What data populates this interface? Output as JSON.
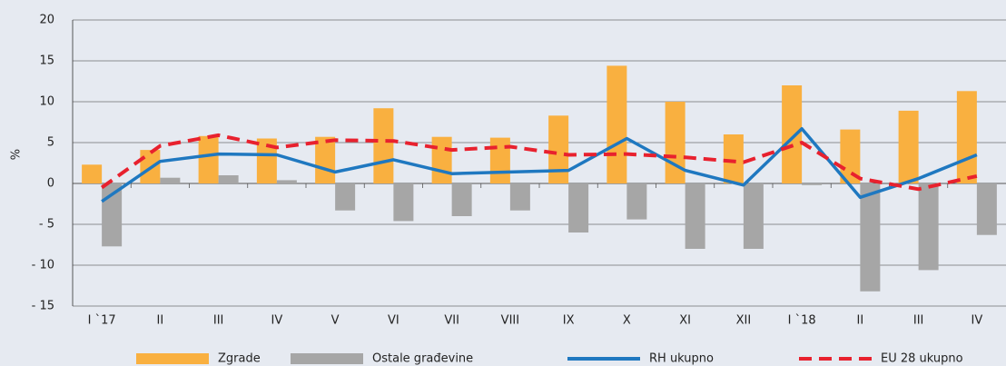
{
  "chart_data": {
    "type": "bar_line",
    "y_label": "%",
    "categories": [
      "I `17",
      "II",
      "III",
      "IV",
      "V",
      "VI",
      "VII",
      "VIII",
      "IX",
      "X",
      "XI",
      "XII",
      "I `18",
      "II",
      "III",
      "IV"
    ],
    "series": [
      {
        "name": "Zgrade",
        "type": "bar",
        "color": "#f9b040",
        "values": [
          2.3,
          4.1,
          5.8,
          5.5,
          5.7,
          9.2,
          5.7,
          5.6,
          8.3,
          14.4,
          10.0,
          6.0,
          12.0,
          6.6,
          8.9,
          11.3
        ]
      },
      {
        "name": "Ostale građevine",
        "type": "bar",
        "color": "#a6a6a6",
        "values": [
          -7.7,
          0.7,
          1.0,
          0.4,
          -3.3,
          -4.6,
          -4.0,
          -3.3,
          -6.0,
          -4.4,
          -8.0,
          -8.0,
          -0.2,
          -13.2,
          -10.6,
          -6.3
        ]
      },
      {
        "name": "RH ukupno",
        "type": "line",
        "color": "#1f78c0",
        "values": [
          -2.2,
          2.7,
          3.6,
          3.5,
          1.4,
          2.9,
          1.2,
          1.4,
          1.6,
          5.5,
          1.6,
          -0.2,
          6.7,
          -1.7,
          0.6,
          3.5
        ]
      },
      {
        "name": "EU 28 ukupno",
        "type": "line",
        "dashed": true,
        "color": "#e8212e",
        "values": [
          -0.5,
          4.6,
          5.9,
          4.4,
          5.3,
          5.2,
          4.1,
          4.5,
          3.5,
          3.6,
          3.2,
          2.6,
          5.0,
          0.6,
          -0.7,
          0.9
        ]
      }
    ],
    "ylim": [
      -15,
      20
    ],
    "yticks": [
      {
        "value": -15,
        "label": "- 15"
      },
      {
        "value": -10,
        "label": "- 10"
      },
      {
        "value": -5,
        "label": "- 5"
      },
      0,
      5,
      10,
      15,
      20
    ],
    "grid": true,
    "legend": "bottom"
  }
}
